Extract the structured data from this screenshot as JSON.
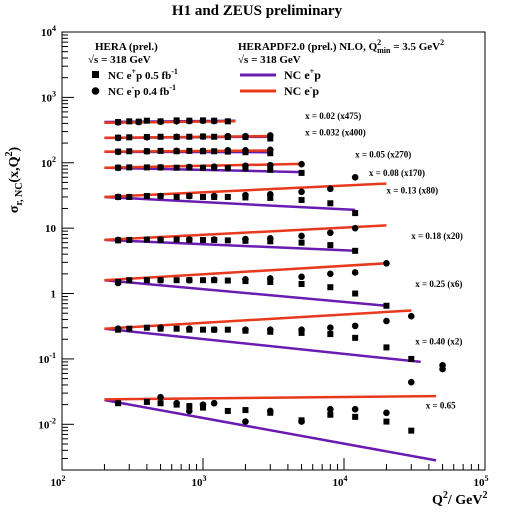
{
  "chart_data": {
    "type": "scatter",
    "title": "H1 and ZEUS preliminary",
    "ylabel_main": "σ",
    "ylabel_sub": "r, NC",
    "ylabel_tail": "(x,Q",
    "ylabel_sup": "2",
    "ylabel_end": ")",
    "xlabel_main": "Q",
    "xlabel_sup": "2",
    "xlabel_tail": "/ GeV",
    "xlabel_sup2": "2",
    "xscale": "log",
    "yscale": "log",
    "xlim": [
      100,
      100000
    ],
    "ylim": [
      0.002,
      10000
    ],
    "x_ticks": [
      {
        "value": 100,
        "base": "10",
        "exp": "2"
      },
      {
        "value": 1000,
        "base": "10",
        "exp": "3"
      },
      {
        "value": 10000,
        "base": "10",
        "exp": "4"
      },
      {
        "value": 100000,
        "base": "10",
        "exp": "5"
      }
    ],
    "y_ticks": [
      {
        "value": 0.01,
        "base": "10",
        "exp": "-2"
      },
      {
        "value": 0.1,
        "base": "10",
        "exp": "-1"
      },
      {
        "value": 1,
        "base": "1",
        "exp": ""
      },
      {
        "value": 10,
        "base": "10",
        "exp": ""
      },
      {
        "value": 100,
        "base": "10",
        "exp": "2"
      },
      {
        "value": 1000,
        "base": "10",
        "exp": "3"
      },
      {
        "value": 10000,
        "base": "10",
        "exp": "4"
      }
    ],
    "legend_left": {
      "title": "HERA (prel.)",
      "energy": "√s = 318 GeV",
      "items": [
        {
          "marker": "square",
          "text": "NC e",
          "sup": "+",
          "tail": "p 0.5 fb",
          "sup2": "-1"
        },
        {
          "marker": "circle",
          "text": "NC e",
          "sup": "-",
          "tail": "p 0.4 fb",
          "sup2": "-1"
        }
      ]
    },
    "legend_right": {
      "title_main": "HERAPDF2.0 (prel.) NLO, Q",
      "title_sup": "2",
      "title_sub": "min",
      "title_tail": " = 3.5 GeV",
      "title_sup2": "2",
      "energy": "√s = 318 GeV",
      "items": [
        {
          "color": "#6a1cb0",
          "text": "NC e",
          "sup": "+",
          "tail": "p"
        },
        {
          "color": "#e8391c",
          "text": "NC e",
          "sup": "-",
          "tail": "p"
        }
      ]
    },
    "colors": {
      "eplus_fit": "#6a1cb0",
      "eminus_fit": "#e8391c",
      "data": "#000000"
    },
    "bins": [
      {
        "label": "x = 0.02  (x475)",
        "label_x": 5300,
        "label_y": 470,
        "eplus_fit": [
          [
            200,
            420
          ],
          [
            1700,
            440
          ]
        ],
        "eminus_fit": [
          [
            200,
            410
          ],
          [
            1700,
            430
          ]
        ],
        "eplus_pts": [
          [
            250,
            420
          ],
          [
            300,
            430
          ],
          [
            350,
            425
          ],
          [
            400,
            440
          ],
          [
            500,
            430
          ],
          [
            650,
            445
          ],
          [
            800,
            440
          ],
          [
            1000,
            445
          ],
          [
            1200,
            440
          ],
          [
            1500,
            430
          ]
        ],
        "eminus_pts": [
          [
            250,
            415
          ],
          [
            350,
            420
          ],
          [
            500,
            425
          ],
          [
            650,
            430
          ],
          [
            800,
            435
          ],
          [
            1000,
            440
          ],
          [
            1200,
            435
          ]
        ]
      },
      {
        "label": "x = 0.032  (x400)",
        "label_x": 5300,
        "label_y": 260,
        "eplus_fit": [
          [
            200,
            240
          ],
          [
            3000,
            250
          ]
        ],
        "eminus_fit": [
          [
            200,
            240
          ],
          [
            3000,
            256
          ]
        ],
        "eplus_pts": [
          [
            250,
            242
          ],
          [
            300,
            245
          ],
          [
            400,
            248
          ],
          [
            500,
            250
          ],
          [
            650,
            248
          ],
          [
            800,
            250
          ],
          [
            1000,
            252
          ],
          [
            1200,
            250
          ],
          [
            1500,
            248
          ],
          [
            2000,
            248
          ],
          [
            3000,
            235
          ]
        ],
        "eminus_pts": [
          [
            250,
            240
          ],
          [
            400,
            245
          ],
          [
            650,
            250
          ],
          [
            1000,
            252
          ],
          [
            1500,
            255
          ],
          [
            2000,
            255
          ],
          [
            3000,
            262
          ]
        ]
      },
      {
        "label": "x = 0.05  (x270)",
        "label_x": 12000,
        "label_y": 120,
        "eplus_fit": [
          [
            200,
            147
          ],
          [
            3000,
            145
          ]
        ],
        "eminus_fit": [
          [
            200,
            148
          ],
          [
            3000,
            154
          ]
        ],
        "eplus_pts": [
          [
            250,
            148
          ],
          [
            300,
            150
          ],
          [
            400,
            150
          ],
          [
            500,
            152
          ],
          [
            650,
            150
          ],
          [
            800,
            152
          ],
          [
            1000,
            150
          ],
          [
            1200,
            150
          ],
          [
            1500,
            148
          ],
          [
            2000,
            145
          ],
          [
            3000,
            140
          ]
        ],
        "eminus_pts": [
          [
            250,
            147
          ],
          [
            400,
            150
          ],
          [
            650,
            152
          ],
          [
            1000,
            152
          ],
          [
            1500,
            155
          ],
          [
            2000,
            155
          ],
          [
            3000,
            158
          ]
        ]
      },
      {
        "label": "x = 0.08  (x170)",
        "label_x": 15000,
        "label_y": 63,
        "eplus_fit": [
          [
            200,
            84
          ],
          [
            5000,
            72
          ]
        ],
        "eminus_fit": [
          [
            200,
            84
          ],
          [
            5000,
            96
          ]
        ],
        "eplus_pts": [
          [
            250,
            84
          ],
          [
            300,
            85
          ],
          [
            400,
            85
          ],
          [
            500,
            85
          ],
          [
            650,
            84
          ],
          [
            800,
            85
          ],
          [
            1000,
            84
          ],
          [
            1200,
            84
          ],
          [
            1500,
            83
          ],
          [
            2000,
            82
          ],
          [
            3000,
            78
          ],
          [
            5000,
            70
          ]
        ],
        "eminus_pts": [
          [
            250,
            84
          ],
          [
            500,
            85
          ],
          [
            800,
            86
          ],
          [
            1200,
            87
          ],
          [
            2000,
            90
          ],
          [
            3000,
            92
          ],
          [
            5000,
            95
          ]
        ]
      },
      {
        "label": "x = 0.13  (x80)",
        "label_x": 20000,
        "label_y": 34,
        "eplus_fit": [
          [
            200,
            30
          ],
          [
            12000,
            19
          ]
        ],
        "eminus_fit": [
          [
            200,
            30
          ],
          [
            20000,
            48
          ]
        ],
        "eplus_pts": [
          [
            250,
            30
          ],
          [
            300,
            30
          ],
          [
            400,
            31
          ],
          [
            500,
            31
          ],
          [
            650,
            30
          ],
          [
            800,
            31
          ],
          [
            1000,
            30
          ],
          [
            1200,
            30
          ],
          [
            1500,
            30
          ],
          [
            2000,
            29.5
          ],
          [
            3000,
            29
          ],
          [
            5000,
            27
          ],
          [
            8000,
            24
          ],
          [
            12000,
            17
          ]
        ],
        "eminus_pts": [
          [
            250,
            30
          ],
          [
            500,
            31
          ],
          [
            800,
            31
          ],
          [
            1200,
            31
          ],
          [
            2000,
            32
          ],
          [
            3000,
            33
          ],
          [
            5000,
            36
          ],
          [
            8000,
            40
          ],
          [
            12000,
            60
          ]
        ]
      },
      {
        "label": "x = 0.18  (x20)",
        "label_x": 30000,
        "label_y": 6.8,
        "eplus_fit": [
          [
            200,
            6.6
          ],
          [
            12000,
            4.5
          ]
        ],
        "eminus_fit": [
          [
            200,
            6.6
          ],
          [
            20000,
            11
          ]
        ],
        "eplus_pts": [
          [
            250,
            6.5
          ],
          [
            300,
            6.6
          ],
          [
            400,
            6.7
          ],
          [
            500,
            6.6
          ],
          [
            650,
            6.7
          ],
          [
            800,
            6.6
          ],
          [
            1000,
            6.6
          ],
          [
            1200,
            6.6
          ],
          [
            1500,
            6.5
          ],
          [
            2000,
            6.4
          ],
          [
            3000,
            6.3
          ],
          [
            5000,
            6
          ],
          [
            8000,
            5.5
          ],
          [
            12000,
            4.5
          ]
        ],
        "eminus_pts": [
          [
            250,
            6.6
          ],
          [
            500,
            6.7
          ],
          [
            800,
            6.7
          ],
          [
            1200,
            6.7
          ],
          [
            2000,
            6.8
          ],
          [
            3000,
            7
          ],
          [
            5000,
            7.6
          ],
          [
            8000,
            8.5
          ],
          [
            12000,
            10
          ]
        ]
      },
      {
        "label": "x = 0.25  (x6)",
        "label_x": 32000,
        "label_y": 1.25,
        "eplus_fit": [
          [
            200,
            1.6
          ],
          [
            20000,
            0.65
          ]
        ],
        "eminus_fit": [
          [
            200,
            1.6
          ],
          [
            20000,
            2.9
          ]
        ],
        "eplus_pts": [
          [
            250,
            1.5
          ],
          [
            300,
            1.6
          ],
          [
            400,
            1.6
          ],
          [
            500,
            1.6
          ],
          [
            650,
            1.6
          ],
          [
            800,
            1.6
          ],
          [
            1000,
            1.6
          ],
          [
            1200,
            1.6
          ],
          [
            1500,
            1.58
          ],
          [
            2000,
            1.55
          ],
          [
            3000,
            1.5
          ],
          [
            5000,
            1.4
          ],
          [
            8000,
            1.25
          ],
          [
            12000,
            1.0
          ],
          [
            20000,
            0.65
          ]
        ],
        "eminus_pts": [
          [
            250,
            1.45
          ],
          [
            500,
            1.6
          ],
          [
            800,
            1.6
          ],
          [
            1200,
            1.62
          ],
          [
            2000,
            1.65
          ],
          [
            3000,
            1.7
          ],
          [
            5000,
            1.8
          ],
          [
            8000,
            2.0
          ],
          [
            12000,
            2.1
          ],
          [
            20000,
            2.9
          ]
        ]
      },
      {
        "label": "x = 0.40  (x2)",
        "label_x": 32000,
        "label_y": 0.165,
        "eplus_fit": [
          [
            200,
            0.29
          ],
          [
            35000,
            0.09
          ]
        ],
        "eminus_fit": [
          [
            200,
            0.29
          ],
          [
            30000,
            0.55
          ]
        ],
        "eplus_pts": [
          [
            250,
            0.28
          ],
          [
            300,
            0.29
          ],
          [
            400,
            0.3
          ],
          [
            500,
            0.29
          ],
          [
            650,
            0.29
          ],
          [
            800,
            0.28
          ],
          [
            1000,
            0.28
          ],
          [
            1200,
            0.28
          ],
          [
            1500,
            0.28
          ],
          [
            2000,
            0.27
          ],
          [
            3000,
            0.26
          ],
          [
            5000,
            0.25
          ],
          [
            8000,
            0.24
          ],
          [
            12000,
            0.21
          ],
          [
            20000,
            0.15
          ],
          [
            30000,
            0.1
          ]
        ],
        "eminus_pts": [
          [
            250,
            0.29
          ],
          [
            500,
            0.3
          ],
          [
            800,
            0.29
          ],
          [
            1200,
            0.28
          ],
          [
            2000,
            0.28
          ],
          [
            3000,
            0.28
          ],
          [
            5000,
            0.28
          ],
          [
            8000,
            0.3
          ],
          [
            12000,
            0.32
          ],
          [
            20000,
            0.38
          ],
          [
            30000,
            0.45
          ],
          [
            50000,
            0.08
          ]
        ]
      },
      {
        "label": "x = 0.65",
        "label_x": 38000,
        "label_y": 0.0175,
        "eplus_fit": [
          [
            200,
            0.0235
          ],
          [
            45000,
            0.0028
          ]
        ],
        "eminus_fit": [
          [
            200,
            0.024
          ],
          [
            45000,
            0.027
          ]
        ],
        "eplus_pts": [
          [
            250,
            0.021
          ],
          [
            400,
            0.022
          ],
          [
            500,
            0.021
          ],
          [
            650,
            0.02
          ],
          [
            800,
            0.019
          ],
          [
            1000,
            0.018
          ],
          [
            1500,
            0.016
          ],
          [
            2000,
            0.0165
          ],
          [
            3000,
            0.015
          ],
          [
            5000,
            0.0115
          ],
          [
            8000,
            0.014
          ],
          [
            12000,
            0.013
          ],
          [
            20000,
            0.011
          ],
          [
            30000,
            0.008
          ]
        ],
        "eminus_pts": [
          [
            500,
            0.026
          ],
          [
            650,
            0.021
          ],
          [
            800,
            0.016
          ],
          [
            1000,
            0.02
          ],
          [
            1200,
            0.021
          ],
          [
            2000,
            0.011
          ],
          [
            3000,
            0.016
          ],
          [
            5000,
            0.011
          ],
          [
            8000,
            0.017
          ],
          [
            12000,
            0.017
          ],
          [
            20000,
            0.015
          ],
          [
            30000,
            0.044
          ],
          [
            50000,
            0.07
          ]
        ]
      }
    ]
  }
}
